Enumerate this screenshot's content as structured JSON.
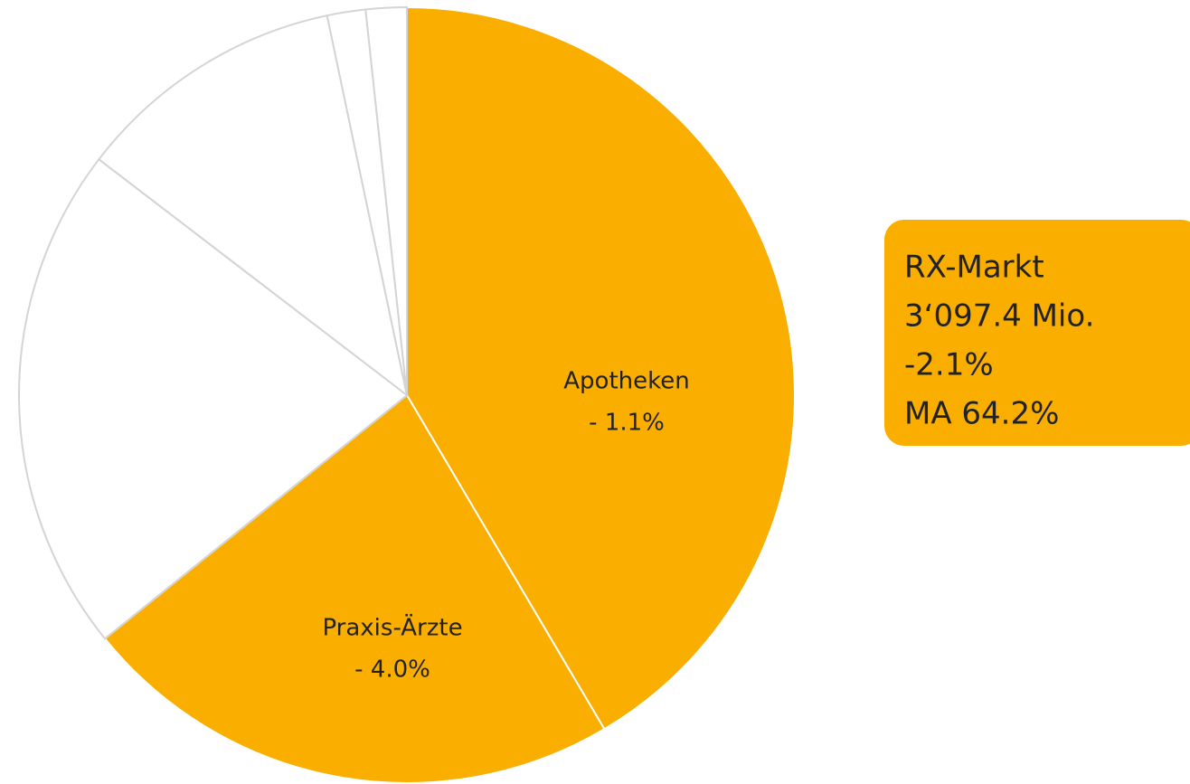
{
  "chart_data": {
    "type": "pie",
    "categories": [
      "Apotheken",
      "Praxis-Ärzte",
      null,
      null,
      null,
      null
    ],
    "values": [
      41.5,
      22.7,
      21.2,
      11.3,
      1.6,
      1.7
    ],
    "colors": [
      "#f9ae00",
      "#f9ae00",
      "#ffffff",
      "#ffffff",
      "#ffffff",
      "#ffffff"
    ],
    "slice_notes": [
      "- 1.1%",
      "- 4.0%"
    ],
    "callout": [
      "RX-Markt",
      "3‘097.4 Mio.",
      "-2.1%",
      "MA 64.2%"
    ],
    "callout_color": "#f9ae00"
  }
}
